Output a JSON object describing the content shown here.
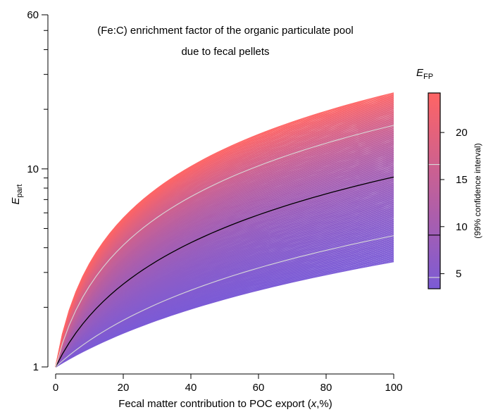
{
  "chart_data": {
    "type": "line",
    "title_lines": [
      "(Fe:C) enrichment factor of the organic particulate pool",
      "due to fecal pellets"
    ],
    "xlabel": {
      "prefix": "Fecal matter contribution to POC export (",
      "italic": "x",
      "suffix": ",%)"
    },
    "ylabel": {
      "main": "E",
      "sub": "part"
    },
    "xlim": [
      0,
      100
    ],
    "ylim": [
      1,
      60
    ],
    "yscale": "log",
    "x_ticks": [
      0,
      20,
      40,
      60,
      80,
      100
    ],
    "y_tick_labels": [
      {
        "value": 1,
        "label": "1"
      },
      {
        "value": 10,
        "label": "10"
      },
      {
        "value": 60,
        "label": "60"
      }
    ],
    "y_minor_ticks": [
      2,
      3,
      4,
      5,
      6,
      7,
      8,
      9,
      20,
      30,
      40,
      50
    ],
    "model": "E_part = 1 + x/100 * (E_FP - 1)",
    "efp_range": [
      3.4,
      24.2
    ],
    "efp_min_color": "#7b5bd6",
    "efp_max_color": "#ff6464",
    "highlight_lines": [
      {
        "efp": 4.6,
        "color": "#d8d8d8",
        "role": "lower 99% bound"
      },
      {
        "efp": 9.1,
        "color": "#000000",
        "role": "central estimate"
      },
      {
        "efp": 16.6,
        "color": "#d8d8d8",
        "role": "upper 99% bound"
      }
    ],
    "colorbar": {
      "title": {
        "main": "E",
        "sub": "FP"
      },
      "side_label": "(99% confidence interval)",
      "range": [
        3.4,
        24.2
      ],
      "ticks": [
        5,
        10,
        15,
        20
      ]
    }
  }
}
